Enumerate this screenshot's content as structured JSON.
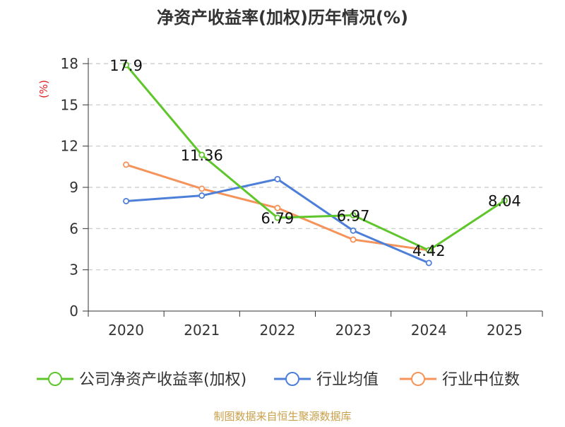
{
  "chart_data": {
    "type": "line",
    "title": "净资产收益率(加权)历年情况(%)",
    "ylabel": "(%)",
    "xlabel": "",
    "categories": [
      "2020",
      "2021",
      "2022",
      "2023",
      "2024",
      "2025"
    ],
    "ylim": [
      0,
      18
    ],
    "yticks": [
      0,
      3,
      6,
      9,
      12,
      15,
      18
    ],
    "grid": true,
    "legend_position": "bottom",
    "series": [
      {
        "name": "公司净资产收益率(加权)",
        "color": "#5ec62a",
        "values": [
          17.9,
          11.36,
          6.79,
          6.97,
          4.42,
          8.04
        ],
        "labels": [
          "17.9",
          "11.36",
          "6.79",
          "6.97",
          "4.42",
          "8.04"
        ]
      },
      {
        "name": "行业均值",
        "color": "#4e7fd8",
        "values": [
          8.0,
          8.4,
          9.6,
          5.85,
          3.5,
          null
        ]
      },
      {
        "name": "行业中位数",
        "color": "#f5935a",
        "values": [
          10.65,
          8.9,
          7.5,
          5.2,
          4.42,
          null
        ]
      }
    ],
    "ylabel_color": "#e02020",
    "source_text": "制图数据来自恒生聚源数据库",
    "source_color": "#c9a04a"
  }
}
